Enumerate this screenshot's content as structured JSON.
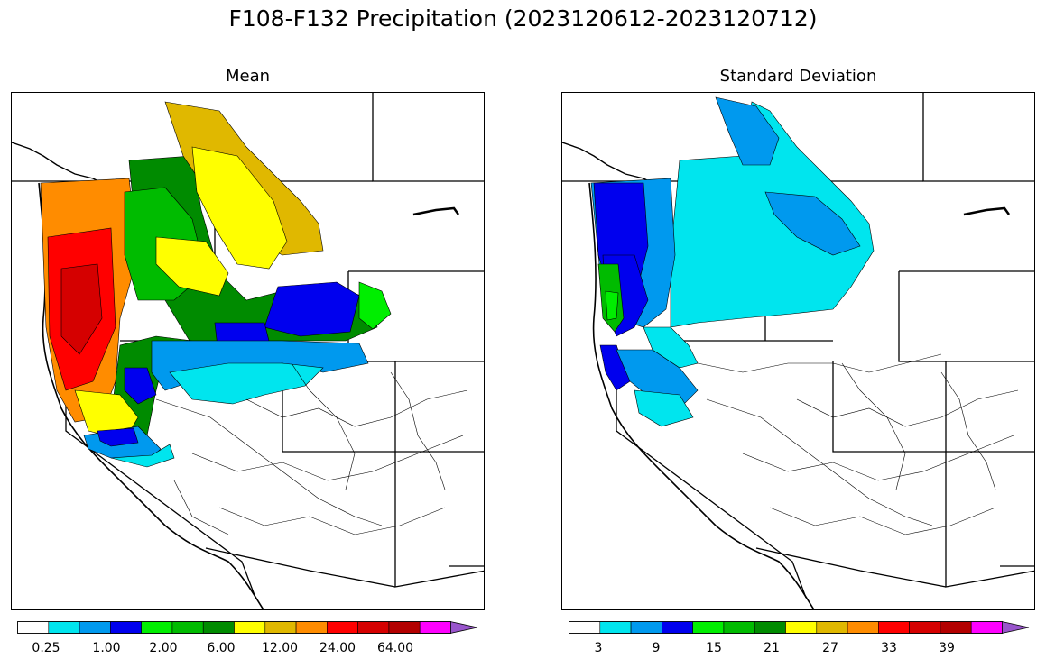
{
  "figure": {
    "title": "F108-F132 Precipitation (2023120612-2023120712)"
  },
  "panels": [
    {
      "title": "Mean",
      "colorbar": {
        "colors": [
          "#ffffff",
          "#00e5ee",
          "#0099ee",
          "#0000ee",
          "#00ee00",
          "#00bb00",
          "#008b00",
          "#ffff00",
          "#e0b800",
          "#ff8c00",
          "#ff0000",
          "#d50000",
          "#b30000",
          "#ff00ff",
          "#9955cc"
        ],
        "tick_labels": [
          "0.25",
          "1.00",
          "2.00",
          "6.00",
          "12.00",
          "24.00",
          "64.00"
        ],
        "extend": "max"
      }
    },
    {
      "title": "Standard Deviation",
      "colorbar": {
        "colors": [
          "#ffffff",
          "#00e5ee",
          "#0099ee",
          "#0000ee",
          "#00ee00",
          "#00bb00",
          "#008b00",
          "#ffff00",
          "#e0b800",
          "#ff8c00",
          "#ff0000",
          "#d50000",
          "#b30000",
          "#ff00ff",
          "#9955cc"
        ],
        "tick_labels": [
          "3",
          "9",
          "15",
          "21",
          "27",
          "33",
          "39"
        ],
        "extend": "max"
      }
    }
  ]
}
